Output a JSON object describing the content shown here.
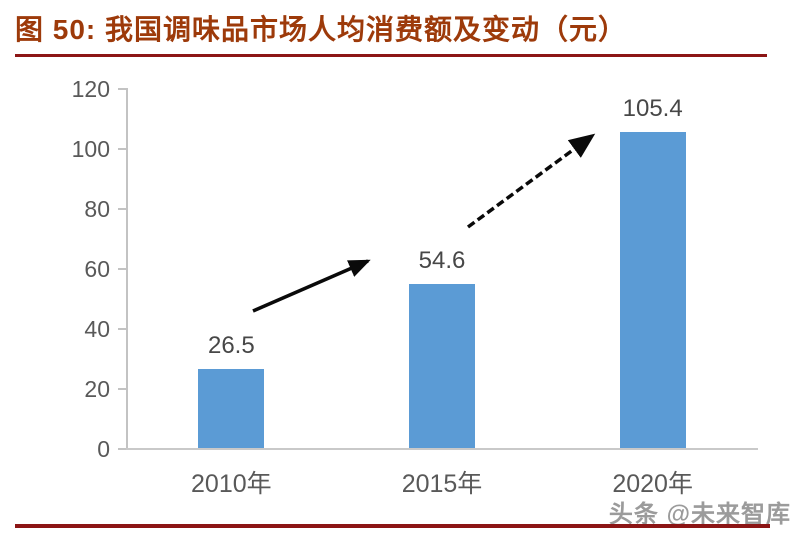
{
  "title": {
    "text": "图 50:  我国调味品市场人均消费额及变动（元）"
  },
  "watermark": {
    "text": "头条 @未来智库"
  },
  "colors": {
    "title": "#9D3A0A",
    "rule": "#8C1515",
    "bar": "#5B9BD5",
    "axis": "#C3C3C3",
    "tick_text": "#595959",
    "arrow": "#0a0a0a"
  },
  "chart_data": {
    "type": "bar",
    "title": "图 50: 我国调味品市场人均消费额及变动（元）",
    "categories": [
      "2010年",
      "2015年",
      "2020年"
    ],
    "values": [
      26.5,
      54.6,
      105.4
    ],
    "data_labels": [
      "26.5",
      "54.6",
      "105.4"
    ],
    "xlabel": "",
    "ylabel": "",
    "ylim": [
      0,
      120
    ],
    "yticks": [
      0,
      20,
      40,
      60,
      80,
      100,
      120
    ],
    "grid": false,
    "legend_position": "none",
    "annotations": [
      {
        "type": "arrow",
        "style": "solid",
        "from_category": "2010年",
        "to_category": "2015年",
        "meaning": "growth from 26.5 to 54.6"
      },
      {
        "type": "arrow",
        "style": "dashed",
        "from_category": "2015年",
        "to_category": "2020年",
        "meaning": "growth from 54.6 to 105.4"
      }
    ]
  }
}
